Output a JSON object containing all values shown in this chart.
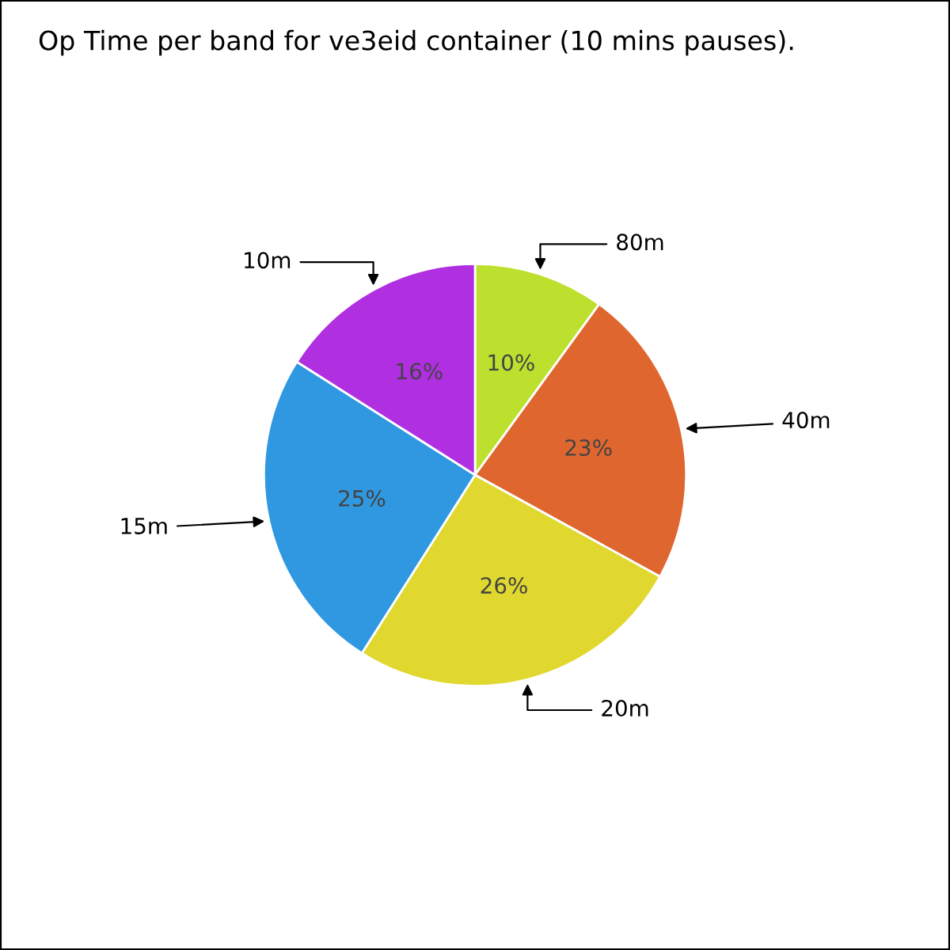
{
  "chart_data": {
    "type": "pie",
    "title": "Op Time per band for ve3eid container (10 mins pauses).",
    "categories": [
      "80m",
      "40m",
      "20m",
      "15m",
      "10m"
    ],
    "values": [
      10,
      23,
      26,
      25,
      16
    ],
    "value_labels": [
      "10%",
      "23%",
      "26%",
      "25%",
      "16%"
    ],
    "colors": [
      "#bde02f",
      "#e0662f",
      "#e0d82f",
      "#2f98e0",
      "#b02fe0"
    ],
    "legend": false
  }
}
